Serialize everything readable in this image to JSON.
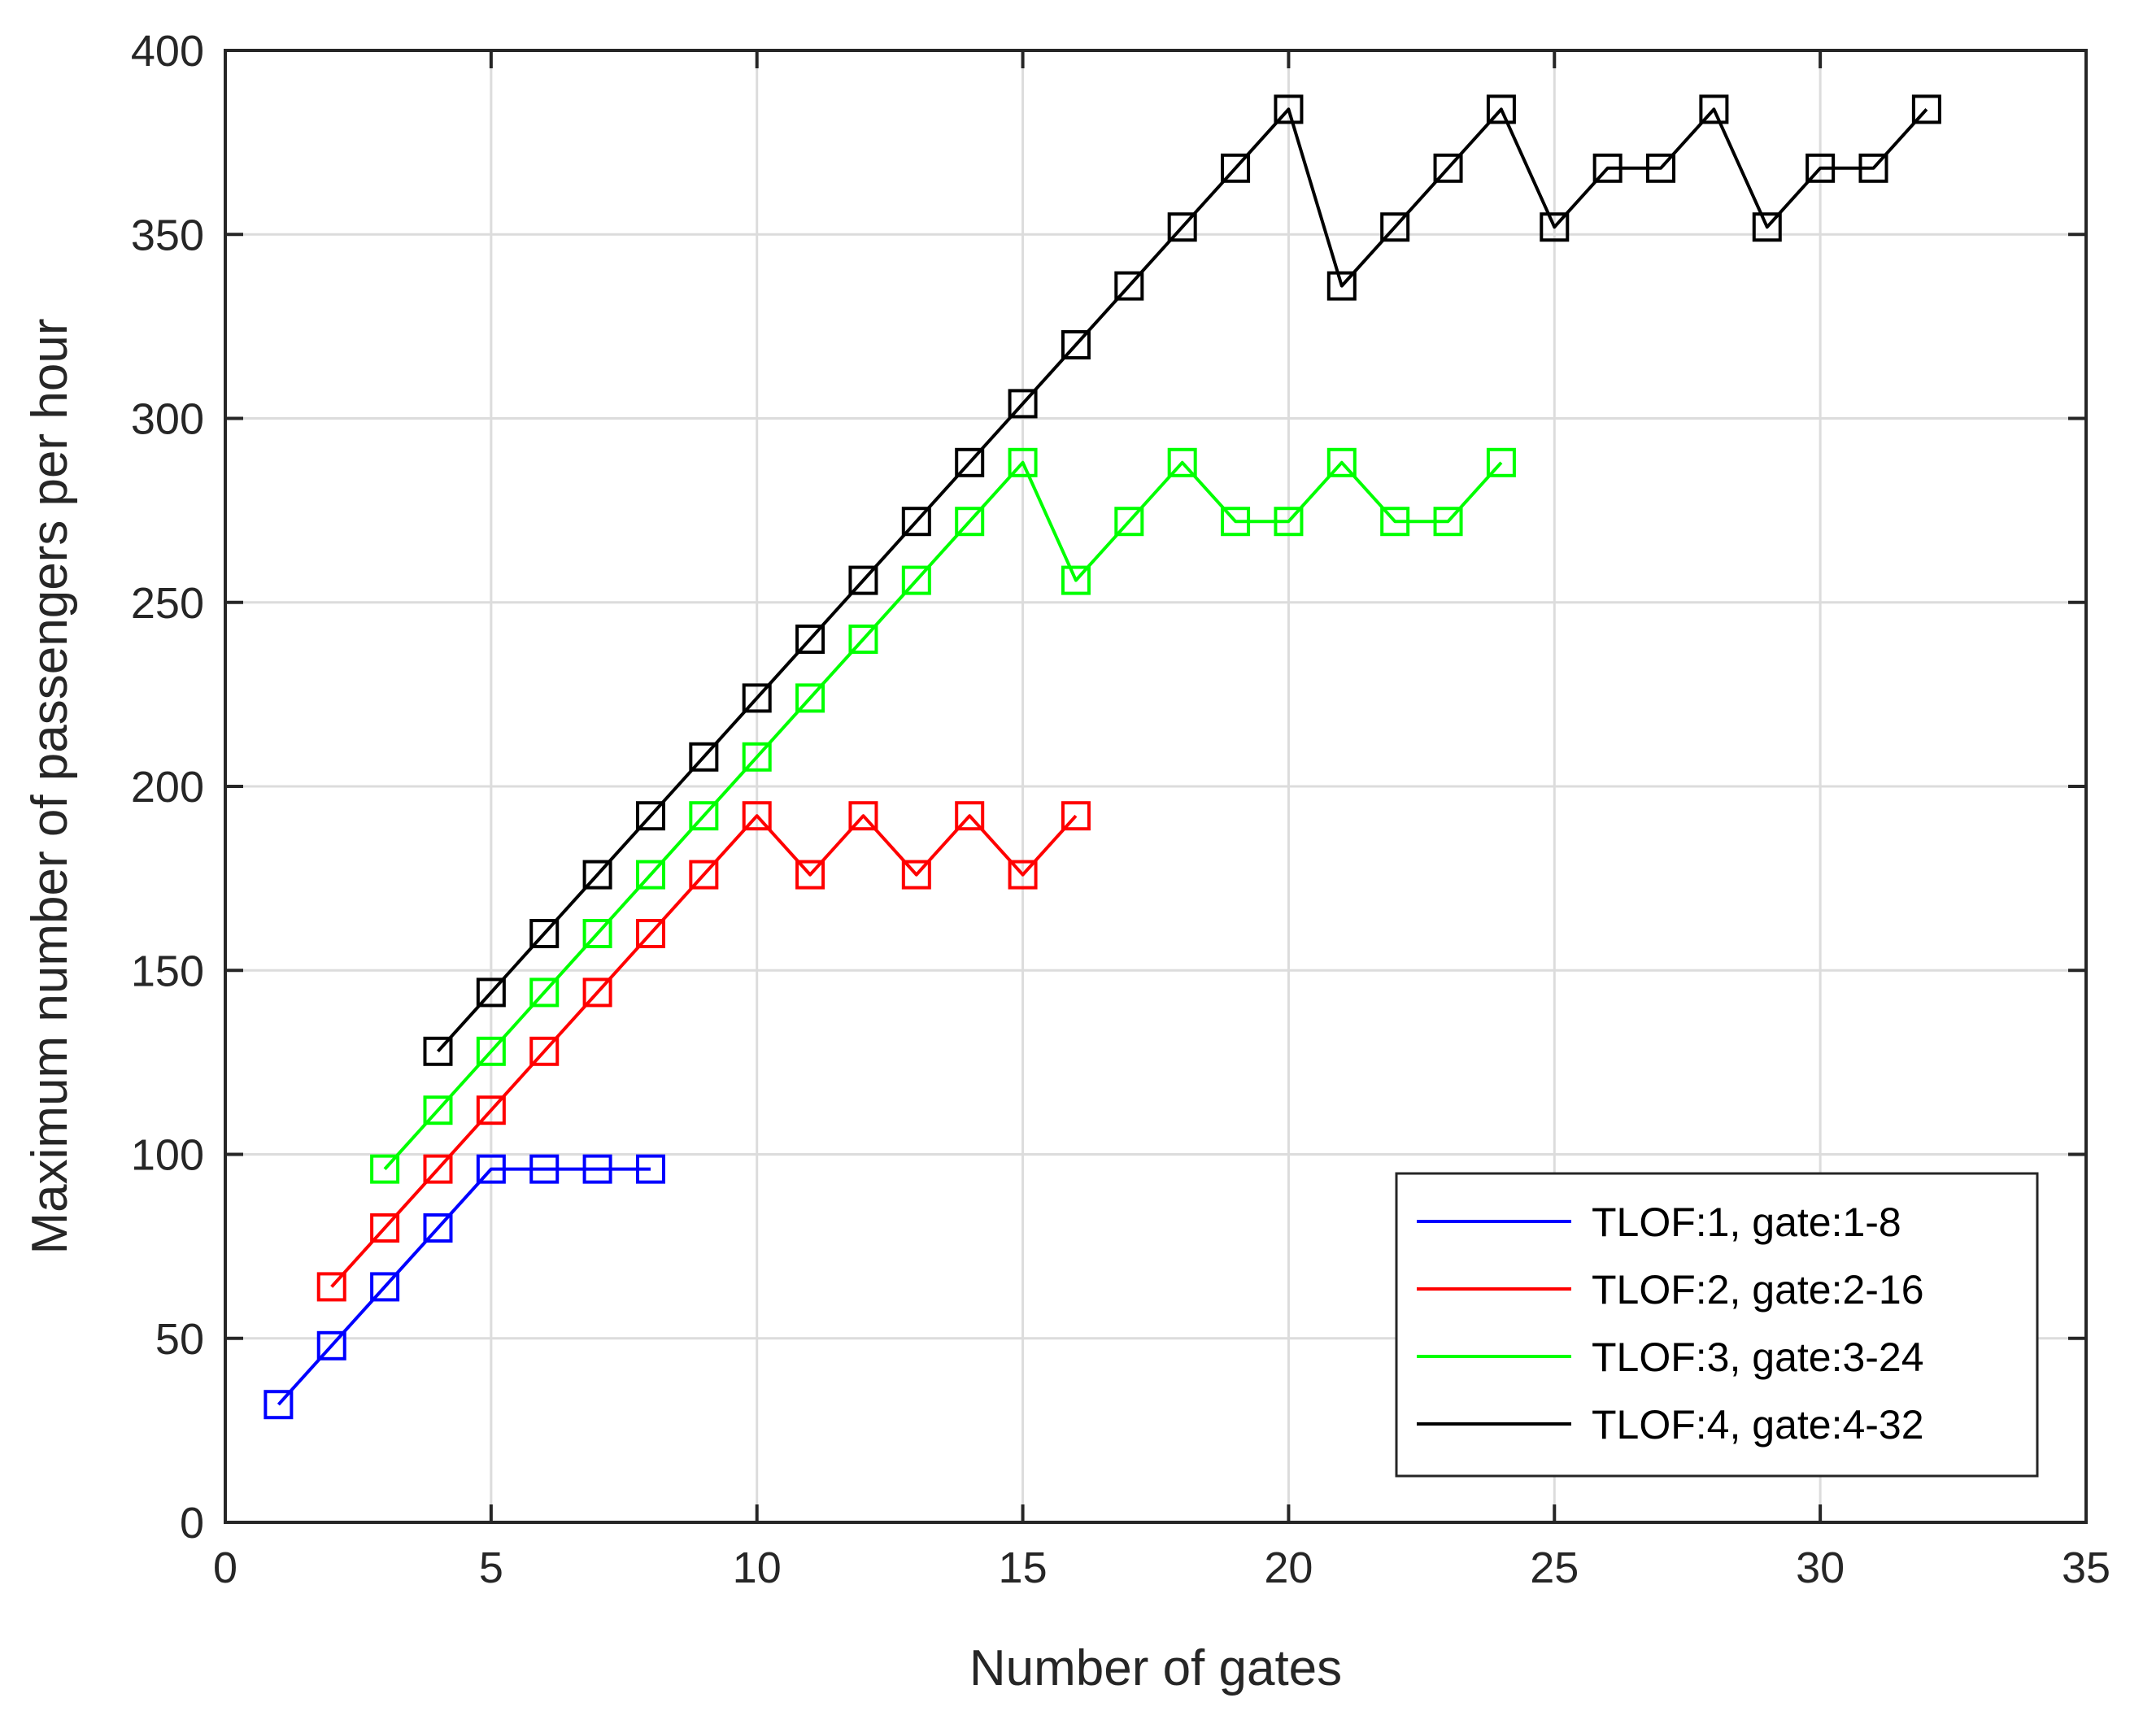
{
  "chart_data": {
    "type": "line",
    "xlabel": "Number of gates",
    "ylabel": "Maximum number of passengers per hour",
    "xlim": [
      0,
      35
    ],
    "ylim": [
      0,
      400
    ],
    "xticks": [
      0,
      5,
      10,
      15,
      20,
      25,
      30,
      35
    ],
    "yticks": [
      0,
      50,
      100,
      150,
      200,
      250,
      300,
      350,
      400
    ],
    "grid": true,
    "legend_position": "bottom-right",
    "marker": "square",
    "series": [
      {
        "name": "TLOF:1, gate:1-8",
        "color": "#0000ff",
        "x": [
          1,
          2,
          3,
          4,
          5,
          6,
          7,
          8
        ],
        "y": [
          32,
          48,
          64,
          80,
          96,
          96,
          96,
          96
        ]
      },
      {
        "name": "TLOF:2, gate:2-16",
        "color": "#ff0000",
        "x": [
          2,
          3,
          4,
          5,
          6,
          7,
          8,
          9,
          10,
          11,
          12,
          13,
          14,
          15,
          16
        ],
        "y": [
          64,
          80,
          96,
          112,
          128,
          144,
          160,
          176,
          192,
          176,
          192,
          176,
          192,
          176,
          192
        ]
      },
      {
        "name": "TLOF:3, gate:3-24",
        "color": "#00ff00",
        "x": [
          3,
          4,
          5,
          6,
          7,
          8,
          9,
          10,
          11,
          12,
          13,
          14,
          15,
          16,
          17,
          18,
          19,
          20,
          21,
          22,
          23,
          24
        ],
        "y": [
          96,
          112,
          128,
          144,
          160,
          176,
          192,
          208,
          224,
          240,
          256,
          272,
          288,
          256,
          272,
          288,
          272,
          272,
          288,
          272,
          272,
          288
        ]
      },
      {
        "name": "TLOF:4, gate:4-32",
        "color": "#000000",
        "x": [
          4,
          5,
          6,
          7,
          8,
          9,
          10,
          11,
          12,
          13,
          14,
          15,
          16,
          17,
          18,
          19,
          20,
          21,
          22,
          23,
          24,
          25,
          26,
          27,
          28,
          29,
          30,
          31,
          32
        ],
        "y": [
          128,
          144,
          160,
          176,
          192,
          208,
          224,
          240,
          256,
          272,
          288,
          304,
          320,
          336,
          352,
          368,
          384,
          336,
          352,
          368,
          384,
          352,
          368,
          368,
          384,
          352,
          368,
          368,
          384
        ]
      }
    ]
  }
}
